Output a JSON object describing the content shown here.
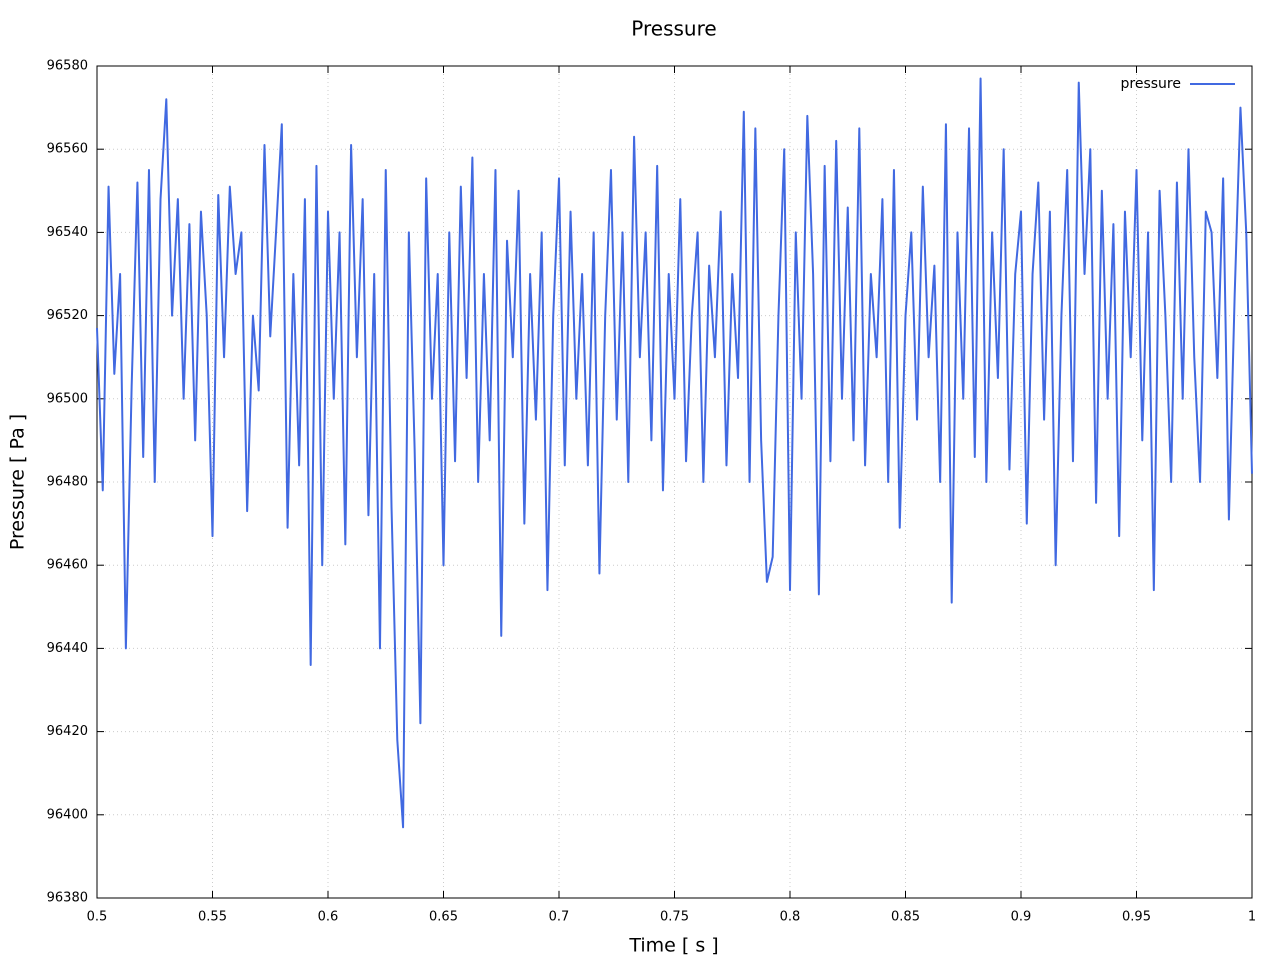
{
  "chart_data": {
    "type": "line",
    "title": "Pressure",
    "x_label": "Time [ s ]",
    "y_label": "Pressure [ Pa ]",
    "x": [
      0.5,
      0.5025,
      0.505,
      0.5075,
      0.51,
      0.5125,
      0.515,
      0.5175,
      0.52,
      0.5225,
      0.525,
      0.5275,
      0.53,
      0.5325,
      0.535,
      0.5375,
      0.54,
      0.5425,
      0.545,
      0.5475,
      0.55,
      0.5525,
      0.555,
      0.5575,
      0.56,
      0.5625,
      0.565,
      0.5675,
      0.57,
      0.5725,
      0.575,
      0.5775,
      0.58,
      0.5825,
      0.585,
      0.5875,
      0.59,
      0.5925,
      0.595,
      0.5975,
      0.6,
      0.6025,
      0.605,
      0.6075,
      0.61,
      0.6125,
      0.615,
      0.6175,
      0.62,
      0.6225,
      0.625,
      0.6275,
      0.63,
      0.6325,
      0.635,
      0.6375,
      0.64,
      0.6425,
      0.645,
      0.6475,
      0.65,
      0.6525,
      0.655,
      0.6575,
      0.66,
      0.6625,
      0.665,
      0.6675,
      0.67,
      0.6725,
      0.675,
      0.6775,
      0.68,
      0.6825,
      0.685,
      0.6875,
      0.69,
      0.6925,
      0.695,
      0.6975,
      0.7,
      0.7025,
      0.705,
      0.7075,
      0.71,
      0.7125,
      0.715,
      0.7175,
      0.72,
      0.7225,
      0.725,
      0.7275,
      0.73,
      0.7325,
      0.735,
      0.7375,
      0.74,
      0.7425,
      0.745,
      0.7475,
      0.75,
      0.7525,
      0.755,
      0.7575,
      0.76,
      0.7625,
      0.765,
      0.7675,
      0.77,
      0.7725,
      0.775,
      0.7775,
      0.78,
      0.7825,
      0.785,
      0.7875,
      0.79,
      0.7925,
      0.795,
      0.7975,
      0.8,
      0.8025,
      0.805,
      0.8075,
      0.81,
      0.8125,
      0.815,
      0.8175,
      0.82,
      0.8225,
      0.825,
      0.8275,
      0.83,
      0.8325,
      0.835,
      0.8375,
      0.84,
      0.8425,
      0.845,
      0.8475,
      0.85,
      0.8525,
      0.855,
      0.8575,
      0.86,
      0.8625,
      0.865,
      0.8675,
      0.87,
      0.8725,
      0.875,
      0.8775,
      0.88,
      0.8825,
      0.885,
      0.8875,
      0.89,
      0.8925,
      0.895,
      0.8975,
      0.9,
      0.9025,
      0.905,
      0.9075,
      0.91,
      0.9125,
      0.915,
      0.9175,
      0.92,
      0.9225,
      0.925,
      0.9275,
      0.93,
      0.9325,
      0.935,
      0.9375,
      0.94,
      0.9425,
      0.945,
      0.9475,
      0.95,
      0.9525,
      0.955,
      0.9575,
      0.96,
      0.9625,
      0.965,
      0.9675,
      0.97,
      0.9725,
      0.975,
      0.9775,
      0.98,
      0.9825,
      0.985,
      0.9875,
      0.99,
      0.9925,
      0.995,
      0.9975,
      1
    ],
    "series": [
      {
        "name": "pressure",
        "color": "#4169e1",
        "values": [
          96517,
          96478,
          96551,
          96506,
          96530,
          96440,
          96503,
          96552,
          96486,
          96555,
          96480,
          96548,
          96572,
          96520,
          96548,
          96500,
          96542,
          96490,
          96545,
          96520,
          96467,
          96549,
          96510,
          96551,
          96530,
          96540,
          96473,
          96520,
          96502,
          96561,
          96515,
          96540,
          96566,
          96469,
          96530,
          96484,
          96548,
          96436,
          96556,
          96460,
          96545,
          96500,
          96540,
          96465,
          96561,
          96510,
          96548,
          96472,
          96530,
          96440,
          96555,
          96474,
          96418,
          96397,
          96540,
          96488,
          96422,
          96553,
          96500,
          96530,
          96460,
          96540,
          96485,
          96551,
          96505,
          96558,
          96480,
          96530,
          96490,
          96555,
          96443,
          96538,
          96510,
          96550,
          96470,
          96530,
          96495,
          96540,
          96454,
          96520,
          96553,
          96484,
          96545,
          96500,
          96530,
          96484,
          96540,
          96458,
          96520,
          96555,
          96495,
          96540,
          96480,
          96563,
          96510,
          96540,
          96490,
          96556,
          96478,
          96530,
          96500,
          96548,
          96485,
          96520,
          96540,
          96480,
          96532,
          96510,
          96545,
          96484,
          96530,
          96505,
          96569,
          96480,
          96565,
          96490,
          96456,
          96462,
          96520,
          96560,
          96454,
          96540,
          96500,
          96568,
          96530,
          96453,
          96556,
          96485,
          96562,
          96500,
          96546,
          96490,
          96565,
          96484,
          96530,
          96510,
          96548,
          96480,
          96555,
          96469,
          96520,
          96540,
          96495,
          96551,
          96510,
          96532,
          96480,
          96566,
          96451,
          96540,
          96500,
          96565,
          96486,
          96577,
          96480,
          96540,
          96505,
          96560,
          96483,
          96530,
          96545,
          96470,
          96530,
          96552,
          96495,
          96545,
          96460,
          96520,
          96555,
          96485,
          96576,
          96530,
          96560,
          96475,
          96550,
          96500,
          96542,
          96467,
          96545,
          96510,
          96555,
          96490,
          96540,
          96454,
          96550,
          96520,
          96480,
          96552,
          96500,
          96560,
          96510,
          96480,
          96545,
          96540,
          96505,
          96553,
          96471,
          96525,
          96570,
          96540,
          96482
        ]
      }
    ],
    "xlim": [
      0.5,
      1
    ],
    "xticks": [
      0.5,
      0.55,
      0.6,
      0.65,
      0.7,
      0.75,
      0.8,
      0.85,
      0.9,
      0.95,
      1
    ],
    "ylim": [
      96380,
      96580
    ],
    "yticks": [
      96380,
      96400,
      96420,
      96440,
      96460,
      96480,
      96500,
      96520,
      96540,
      96560,
      96580
    ],
    "grid": true,
    "legend": "top-right"
  }
}
